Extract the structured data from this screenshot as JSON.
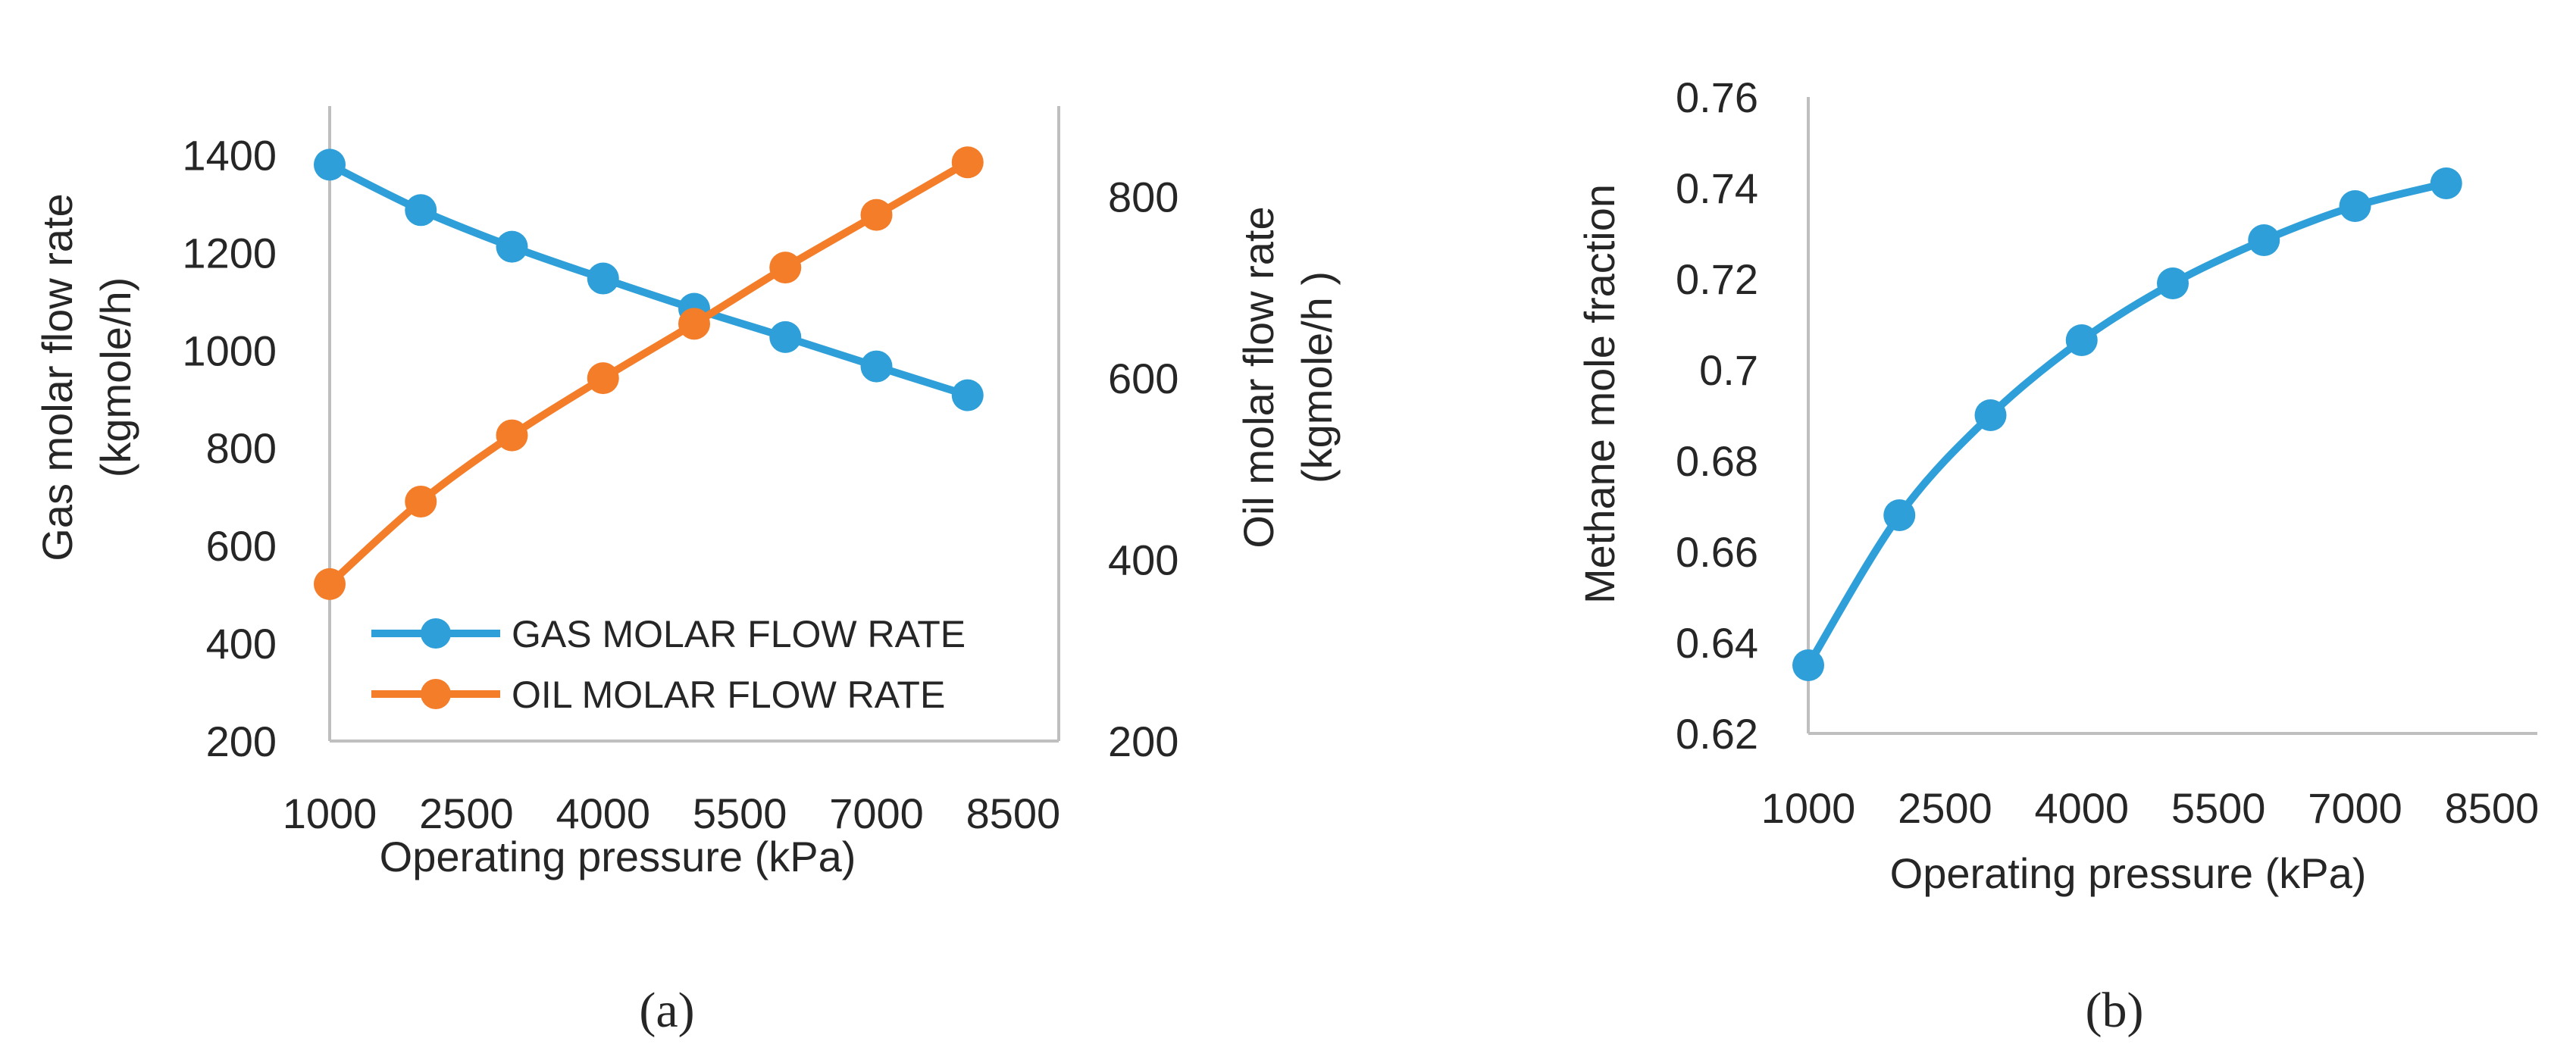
{
  "chart_data": [
    {
      "type": "line",
      "panel_label": "(a)",
      "xlabel": "Operating pressure (kPa)",
      "ylabel_left_line1": "Gas molar flow rate",
      "ylabel_left_line2": "(kgmole/h)",
      "ylabel_right_line1": "Oil molar flow rate",
      "ylabel_right_line2": "(kgmole/h )",
      "x_ticks": [
        "1000",
        "2500",
        "4000",
        "5500",
        "7000",
        "8500"
      ],
      "x_tick_values": [
        1000,
        2500,
        4000,
        5500,
        7000,
        8500
      ],
      "xlim": [
        1000,
        9000
      ],
      "y_left_ticks": [
        "200",
        "400",
        "600",
        "800",
        "1000",
        "1200",
        "1400"
      ],
      "y_left_tick_values": [
        200,
        400,
        600,
        800,
        1000,
        1200,
        1400
      ],
      "y_left_lim": [
        200,
        1500
      ],
      "y_right_ticks": [
        "200",
        "400",
        "600",
        "800"
      ],
      "y_right_tick_values": [
        200,
        400,
        600,
        800
      ],
      "y_right_lim": [
        200,
        900
      ],
      "legend_position": "bottom-left",
      "series": [
        {
          "name": "GAS MOLAR FLOW RATE",
          "axis": "left",
          "color": "#2e9fd8",
          "x": [
            1000,
            2000,
            3000,
            4000,
            5000,
            6000,
            7000,
            8000
          ],
          "values": [
            1380,
            1287,
            1212,
            1147,
            1085,
            1027,
            967,
            908
          ]
        },
        {
          "name": "OIL MOLAR FLOW RATE",
          "axis": "right",
          "color": "#f47d2a",
          "x": [
            1000,
            2000,
            3000,
            4000,
            5000,
            6000,
            7000,
            8000
          ],
          "values": [
            373,
            464,
            537,
            600,
            660,
            722,
            780,
            838
          ]
        }
      ]
    },
    {
      "type": "line",
      "panel_label": "(b)",
      "xlabel": "Operating pressure (kPa)",
      "ylabel": "Methane mole fraction",
      "x_ticks": [
        "1000",
        "2500",
        "4000",
        "5500",
        "7000",
        "8500"
      ],
      "x_tick_values": [
        1000,
        2500,
        4000,
        5500,
        7000,
        8500
      ],
      "xlim": [
        1000,
        9000
      ],
      "y_ticks": [
        "0.62",
        "0.64",
        "0.66",
        "0.68",
        "0.7",
        "0.72",
        "0.74",
        "0.76"
      ],
      "y_tick_values": [
        0.62,
        0.64,
        0.66,
        0.68,
        0.7,
        0.72,
        0.74,
        0.76
      ],
      "ylim": [
        0.62,
        0.76
      ],
      "series": [
        {
          "name": "Methane mole fraction",
          "color": "#2e9fd8",
          "x": [
            1000,
            2000,
            3000,
            4000,
            5000,
            6000,
            7000,
            8000
          ],
          "values": [
            0.635,
            0.668,
            0.69,
            0.7065,
            0.719,
            0.7285,
            0.736,
            0.741
          ]
        }
      ]
    }
  ]
}
